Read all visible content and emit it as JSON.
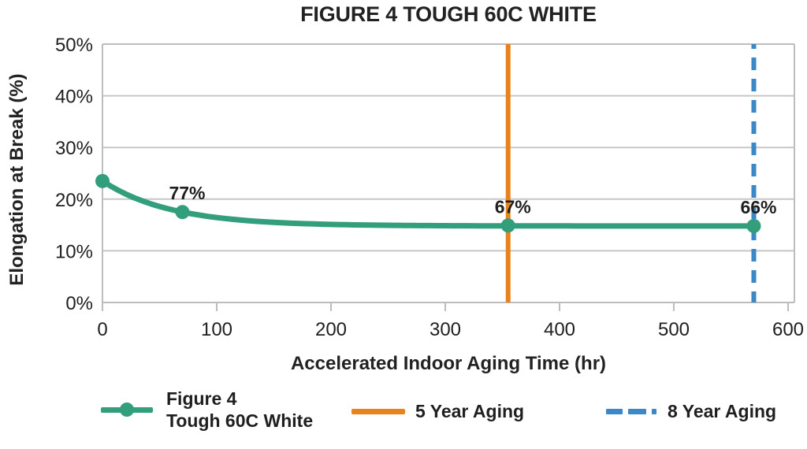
{
  "figure": {
    "title": "FIGURE 4 TOUGH 60C WHITE",
    "xlabel": "Accelerated Indoor Aging Time (hr)",
    "ylabel": "Elongation at Break (%)"
  },
  "chart_data": {
    "type": "line",
    "title": "FIGURE 4 TOUGH 60C WHITE",
    "xlabel": "Accelerated Indoor Aging Time (hr)",
    "ylabel": "Elongation at Break (%)",
    "xlim": [
      0,
      605
    ],
    "ylim": [
      0,
      50
    ],
    "xticks": [
      0,
      100,
      200,
      300,
      400,
      500,
      600
    ],
    "yticks": [
      0,
      10,
      20,
      30,
      40,
      50
    ],
    "ytick_suffix": "%",
    "grid": "horizontal",
    "legend_position": "bottom",
    "series": [
      {
        "name": "Figure 4 Tough 60C White",
        "color": "#339E7C",
        "marker": "circle",
        "points": [
          {
            "x": 0,
            "y": 23.5,
            "label": ""
          },
          {
            "x": 70,
            "y": 17.5,
            "label": "77%"
          },
          {
            "x": 355,
            "y": 14.9,
            "label": "67%"
          },
          {
            "x": 570,
            "y": 14.8,
            "label": "66%"
          }
        ]
      }
    ],
    "vlines": [
      {
        "name": "5 Year Aging",
        "x": 355,
        "color": "#E8821D",
        "style": "solid"
      },
      {
        "name": "8 Year Aging",
        "x": 570,
        "color": "#3C87C6",
        "style": "dashed"
      }
    ],
    "colors": {
      "grid": "#C7C7C7",
      "axis": "#BDBDBD",
      "text": "#1F1F1F",
      "background": "#FFFFFF"
    }
  },
  "legend": {
    "series_label_line1": "Figure 4",
    "series_label_line2": "Tough 60C White",
    "vline1_label": "5 Year Aging",
    "vline2_label": "8 Year Aging"
  }
}
